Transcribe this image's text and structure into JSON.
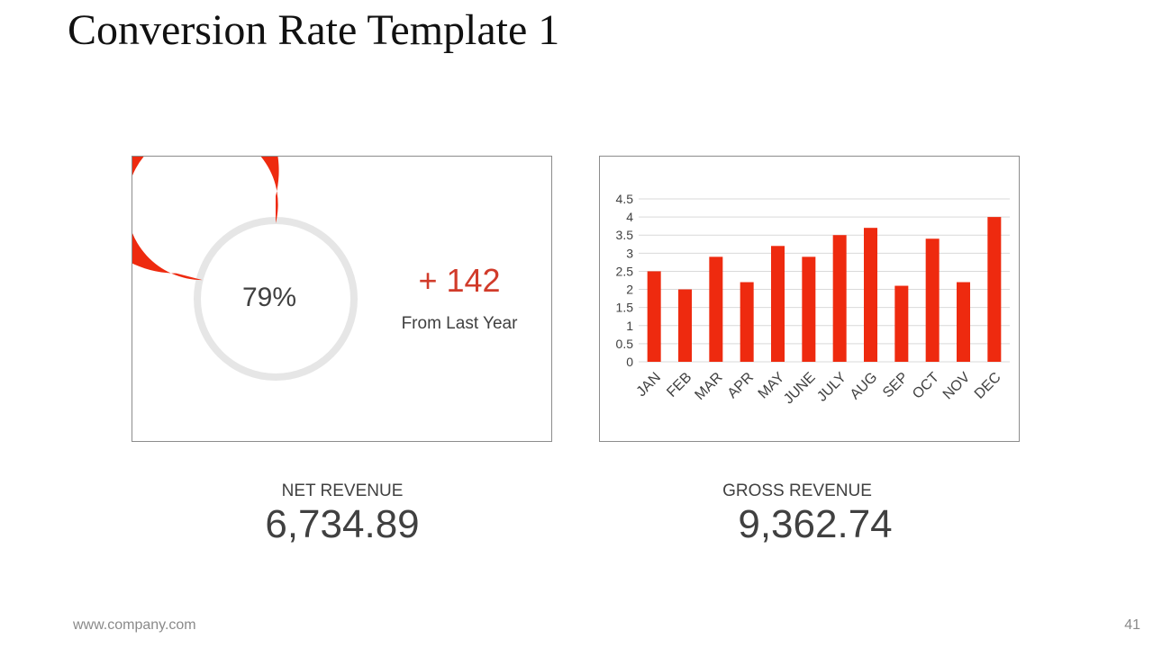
{
  "slide": {
    "title": "Conversion Rate Template 1",
    "footer_url": "www.company.com",
    "page_number": "41"
  },
  "colors": {
    "accent": "#ee2a0f",
    "track": "#e6e6e6",
    "change_text": "#d13b2a",
    "grid": "#d9d9d9"
  },
  "kpi": {
    "change_value": "+ 142",
    "change_caption": "From Last Year"
  },
  "metrics": [
    {
      "label": "NET REVENUE",
      "value": "6,734.89"
    },
    {
      "label": "GROSS REVENUE",
      "value": "9,362.74"
    }
  ],
  "chart_data": [
    {
      "type": "pie",
      "subtype": "donut",
      "value": 79,
      "label": "79%"
    },
    {
      "type": "bar",
      "categories": [
        "JAN",
        "FEB",
        "MAR",
        "APR",
        "MAY",
        "JUNE",
        "JULY",
        "AUG",
        "SEP",
        "OCT",
        "NOV",
        "DEC"
      ],
      "values": [
        2.5,
        2.0,
        2.9,
        2.2,
        3.2,
        2.9,
        3.5,
        3.7,
        2.1,
        3.4,
        2.2,
        4.0
      ],
      "ylim": [
        0,
        4.5
      ],
      "yticks": [
        "0",
        "0.5",
        "1",
        "1.5",
        "2",
        "2.5",
        "3",
        "3.5",
        "4",
        "4.5"
      ],
      "grid": true,
      "legend": "none"
    }
  ]
}
